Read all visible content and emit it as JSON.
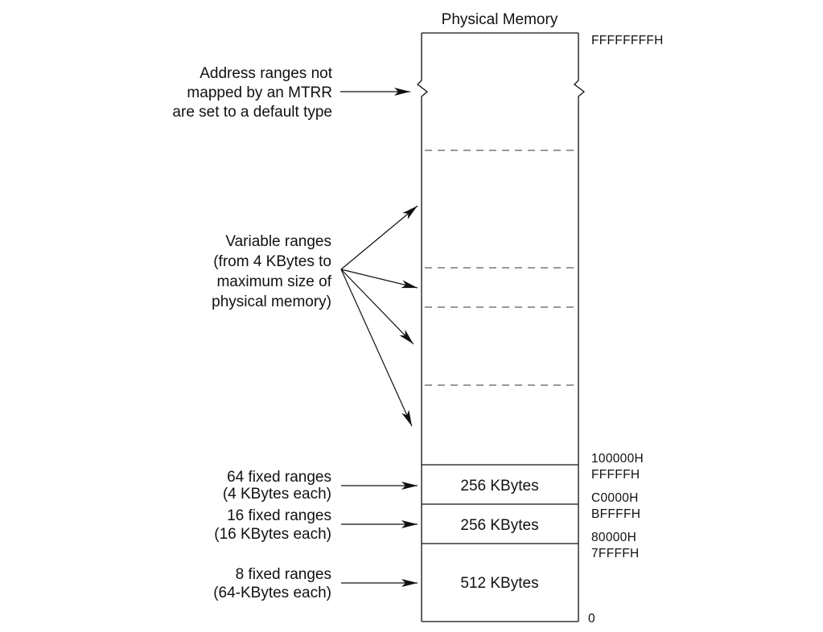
{
  "title": "Physical Memory",
  "left_labels": {
    "default": [
      "Address ranges not",
      "mapped by an MTRR",
      "are set to a default type"
    ],
    "variable": [
      "Variable ranges",
      "(from 4 KBytes to",
      "maximum size of",
      "physical memory)"
    ],
    "fixed64": [
      "64 fixed ranges",
      "(4 KBytes each)"
    ],
    "fixed16": [
      "16 fixed ranges",
      "(16 KBytes each)"
    ],
    "fixed8": [
      "8 fixed ranges",
      "(64-KBytes each)"
    ]
  },
  "addresses": {
    "top": "FFFFFFFFH",
    "a100000": "100000H",
    "fffff": "FFFFFH",
    "c0000": "C0000H",
    "bffff": "BFFFFH",
    "a80000": "80000H",
    "a7ffff": "7FFFFH",
    "zero": "0"
  },
  "blocks": {
    "b1": "256 KBytes",
    "b2": "256 KBytes",
    "b3": "512 KBytes"
  }
}
